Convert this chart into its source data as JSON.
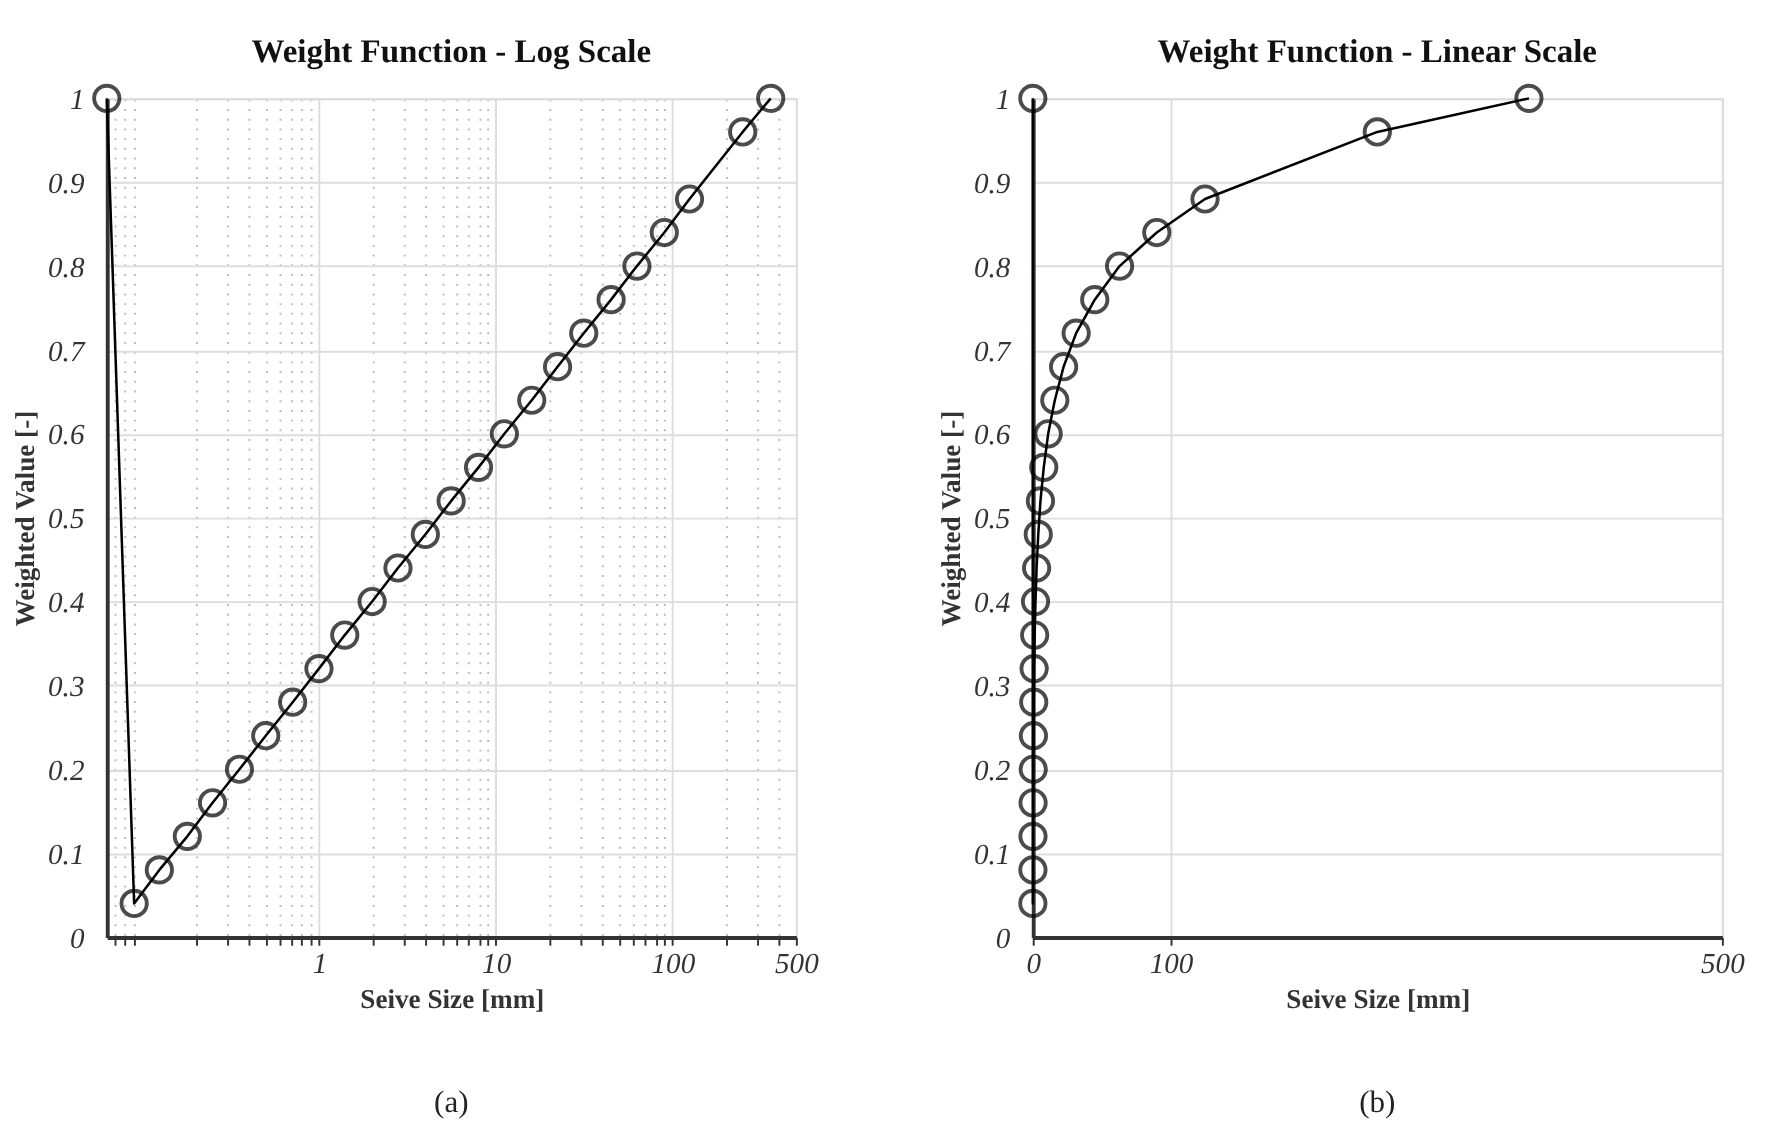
{
  "chart_data": [
    {
      "type": "line",
      "title": "Weight Function - Log Scale",
      "xlabel": "Seive Size [mm]",
      "ylabel": "Weighted Value [-]",
      "annotations": [
        "(a)"
      ],
      "log": "x",
      "grid": true,
      "marker": "circle",
      "line_style": "solid",
      "x": [
        0.063,
        0.09,
        0.125,
        0.18,
        0.25,
        0.355,
        0.5,
        0.71,
        1,
        1.4,
        2,
        2.8,
        4,
        5.6,
        8,
        11.2,
        16,
        22.4,
        31.5,
        45,
        63,
        90,
        125,
        250,
        360
      ],
      "series": [
        {
          "color": "#000000",
          "values": [
            1,
            0.04,
            0.08,
            0.12,
            0.16,
            0.2,
            0.24,
            0.28,
            0.32,
            0.36,
            0.4,
            0.44,
            0.48,
            0.52,
            0.56,
            0.6,
            0.64,
            0.68,
            0.72,
            0.76,
            0.8,
            0.84,
            0.88,
            0.96,
            1
          ]
        }
      ],
      "xlim": [
        0.063,
        500
      ],
      "xticks": [
        {
          "value": 0.07,
          "label": null
        },
        {
          "value": 0.08,
          "label": null
        },
        {
          "value": 0.09,
          "label": null
        },
        {
          "value": 0.2,
          "label": null
        },
        {
          "value": 0.3,
          "label": null
        },
        {
          "value": 0.4,
          "label": null
        },
        {
          "value": 0.5,
          "label": null
        },
        {
          "value": 0.6,
          "label": null
        },
        {
          "value": 0.7,
          "label": null
        },
        {
          "value": 0.8,
          "label": null
        },
        {
          "value": 0.9,
          "label": null
        },
        1,
        {
          "value": 2,
          "label": null
        },
        {
          "value": 3,
          "label": null
        },
        {
          "value": 4,
          "label": null
        },
        {
          "value": 5,
          "label": null
        },
        {
          "value": 6,
          "label": null
        },
        {
          "value": 7,
          "label": null
        },
        {
          "value": 8,
          "label": null
        },
        {
          "value": 9,
          "label": null
        },
        10,
        {
          "value": 20,
          "label": null
        },
        {
          "value": 30,
          "label": null
        },
        {
          "value": 40,
          "label": null
        },
        {
          "value": 50,
          "label": null
        },
        {
          "value": 60,
          "label": null
        },
        {
          "value": 70,
          "label": null
        },
        {
          "value": 80,
          "label": null
        },
        {
          "value": 90,
          "label": null
        },
        100,
        {
          "value": 200,
          "label": null
        },
        {
          "value": 300,
          "label": null
        },
        {
          "value": 400,
          "label": null
        },
        500
      ],
      "ylim": [
        0,
        1
      ],
      "yticks": [
        0,
        0.1,
        0.2,
        0.3,
        0.4,
        0.5,
        0.6,
        0.7,
        0.8,
        0.9,
        1
      ]
    },
    {
      "type": "line",
      "title": "Weight Function - Linear Scale",
      "xlabel": "Seive Size [mm]",
      "ylabel": "Weighted Value [-]",
      "annotations": [
        "(b)"
      ],
      "grid": true,
      "marker": "circle",
      "line_style": "solid",
      "x": [
        0.063,
        0.09,
        0.125,
        0.18,
        0.25,
        0.355,
        0.5,
        0.71,
        1,
        1.4,
        2,
        2.8,
        4,
        5.6,
        8,
        11.2,
        16,
        22.4,
        31.5,
        45,
        63,
        90,
        125,
        250,
        360
      ],
      "series": [
        {
          "color": "#000000",
          "values": [
            1,
            0.04,
            0.08,
            0.12,
            0.16,
            0.2,
            0.24,
            0.28,
            0.32,
            0.36,
            0.4,
            0.44,
            0.48,
            0.52,
            0.56,
            0.6,
            0.64,
            0.68,
            0.72,
            0.76,
            0.8,
            0.84,
            0.88,
            0.96,
            1
          ]
        }
      ],
      "xlim": [
        0,
        500
      ],
      "xticks": [
        0,
        100,
        500
      ],
      "ylim": [
        0,
        1
      ],
      "yticks": [
        0,
        0.1,
        0.2,
        0.3,
        0.4,
        0.5,
        0.6,
        0.7,
        0.8,
        0.9,
        1
      ]
    }
  ]
}
